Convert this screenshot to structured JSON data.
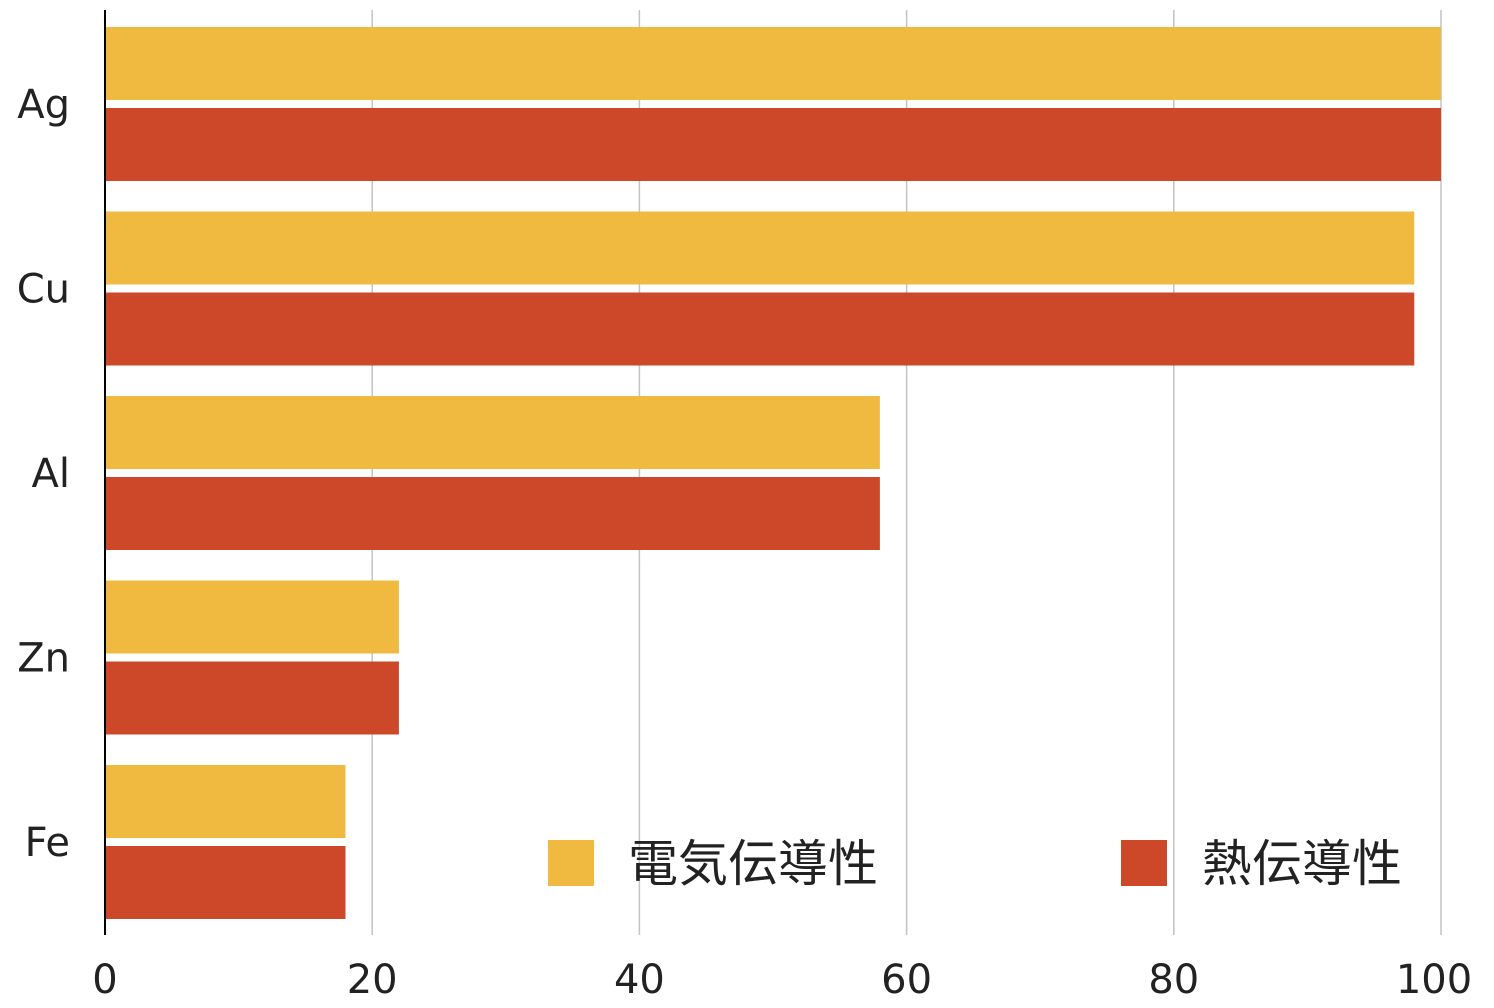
{
  "chart_data": {
    "type": "bar",
    "orientation": "horizontal",
    "categories": [
      "Ag",
      "Cu",
      "Al",
      "Zn",
      "Fe"
    ],
    "series": [
      {
        "name": "電気伝導性",
        "color": "#F0BA41",
        "values": [
          100,
          98,
          58,
          22,
          18
        ]
      },
      {
        "name": "熱伝導性",
        "color": "#CC4828",
        "values": [
          100,
          98,
          58,
          22,
          18
        ]
      }
    ],
    "xlim": [
      0,
      100
    ],
    "xticks": [
      0,
      20,
      40,
      60,
      80,
      100
    ],
    "xtick_labels": [
      "0",
      "20",
      "40",
      "60",
      "80",
      "100"
    ],
    "grid": "vertical",
    "legend_position": "bottom-right, inside plot"
  }
}
